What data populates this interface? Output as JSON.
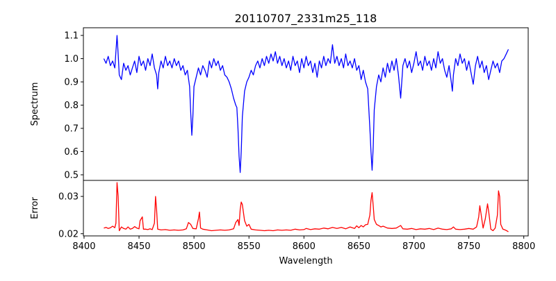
{
  "chart_data": [
    {
      "type": "line",
      "title": "20110707_2331m25_118",
      "xlabel": "",
      "ylabel": "Spectrum",
      "xlim": [
        8399.4,
        8804
      ],
      "ylim": [
        0.476,
        1.133
      ],
      "xticks": [
        8400,
        8450,
        8500,
        8550,
        8600,
        8650,
        8700,
        8750,
        8800
      ],
      "yticks": [
        0.5,
        0.6,
        0.7,
        0.8,
        0.9,
        1.0,
        1.1
      ],
      "ytick_labels": [
        "0.5",
        "0.6",
        "0.7",
        "0.8",
        "0.9",
        "1.0",
        "1.1"
      ],
      "color": "#0000ff",
      "points": [
        [
          8418,
          1.0
        ],
        [
          8420,
          0.98
        ],
        [
          8422,
          1.01
        ],
        [
          8424,
          0.97
        ],
        [
          8426,
          0.99
        ],
        [
          8428,
          0.96
        ],
        [
          8429,
          1.03
        ],
        [
          8430,
          1.1
        ],
        [
          8431,
          1.02
        ],
        [
          8432,
          0.93
        ],
        [
          8434,
          0.91
        ],
        [
          8436,
          0.98
        ],
        [
          8438,
          0.95
        ],
        [
          8440,
          0.97
        ],
        [
          8442,
          0.93
        ],
        [
          8444,
          0.96
        ],
        [
          8446,
          0.99
        ],
        [
          8448,
          0.94
        ],
        [
          8450,
          1.01
        ],
        [
          8452,
          0.97
        ],
        [
          8454,
          0.99
        ],
        [
          8456,
          0.95
        ],
        [
          8458,
          1.0
        ],
        [
          8460,
          0.97
        ],
        [
          8462,
          1.02
        ],
        [
          8464,
          0.96
        ],
        [
          8466,
          0.93
        ],
        [
          8467,
          0.87
        ],
        [
          8468,
          0.94
        ],
        [
          8470,
          0.99
        ],
        [
          8472,
          0.96
        ],
        [
          8474,
          1.01
        ],
        [
          8476,
          0.97
        ],
        [
          8478,
          0.99
        ],
        [
          8480,
          0.96
        ],
        [
          8482,
          1.0
        ],
        [
          8484,
          0.97
        ],
        [
          8486,
          0.99
        ],
        [
          8488,
          0.95
        ],
        [
          8490,
          0.97
        ],
        [
          8492,
          0.93
        ],
        [
          8494,
          0.95
        ],
        [
          8496,
          0.88
        ],
        [
          8497,
          0.77
        ],
        [
          8498,
          0.67
        ],
        [
          8499,
          0.75
        ],
        [
          8500,
          0.88
        ],
        [
          8502,
          0.92
        ],
        [
          8504,
          0.96
        ],
        [
          8506,
          0.93
        ],
        [
          8508,
          0.97
        ],
        [
          8510,
          0.95
        ],
        [
          8512,
          0.92
        ],
        [
          8514,
          0.99
        ],
        [
          8516,
          0.96
        ],
        [
          8518,
          1.0
        ],
        [
          8520,
          0.97
        ],
        [
          8522,
          0.99
        ],
        [
          8524,
          0.95
        ],
        [
          8526,
          0.97
        ],
        [
          8528,
          0.93
        ],
        [
          8530,
          0.92
        ],
        [
          8532,
          0.9
        ],
        [
          8534,
          0.87
        ],
        [
          8536,
          0.83
        ],
        [
          8538,
          0.8
        ],
        [
          8539,
          0.79
        ],
        [
          8540,
          0.7
        ],
        [
          8541,
          0.58
        ],
        [
          8542,
          0.51
        ],
        [
          8543,
          0.6
        ],
        [
          8544,
          0.75
        ],
        [
          8546,
          0.86
        ],
        [
          8548,
          0.9
        ],
        [
          8550,
          0.92
        ],
        [
          8552,
          0.95
        ],
        [
          8554,
          0.93
        ],
        [
          8556,
          0.97
        ],
        [
          8558,
          0.99
        ],
        [
          8560,
          0.96
        ],
        [
          8562,
          1.0
        ],
        [
          8564,
          0.97
        ],
        [
          8566,
          1.01
        ],
        [
          8568,
          0.98
        ],
        [
          8570,
          1.02
        ],
        [
          8572,
          0.99
        ],
        [
          8574,
          1.03
        ],
        [
          8576,
          0.98
        ],
        [
          8578,
          1.01
        ],
        [
          8580,
          0.97
        ],
        [
          8582,
          1.0
        ],
        [
          8584,
          0.96
        ],
        [
          8586,
          0.99
        ],
        [
          8588,
          0.95
        ],
        [
          8590,
          1.01
        ],
        [
          8592,
          0.97
        ],
        [
          8594,
          0.99
        ],
        [
          8596,
          0.94
        ],
        [
          8598,
          1.0
        ],
        [
          8600,
          0.96
        ],
        [
          8602,
          1.01
        ],
        [
          8604,
          0.97
        ],
        [
          8606,
          0.99
        ],
        [
          8608,
          0.94
        ],
        [
          8610,
          0.98
        ],
        [
          8612,
          0.92
        ],
        [
          8614,
          0.99
        ],
        [
          8616,
          0.96
        ],
        [
          8618,
          1.01
        ],
        [
          8620,
          0.97
        ],
        [
          8622,
          1.0
        ],
        [
          8624,
          0.98
        ],
        [
          8626,
          1.06
        ],
        [
          8628,
          0.98
        ],
        [
          8630,
          1.01
        ],
        [
          8632,
          0.97
        ],
        [
          8634,
          1.0
        ],
        [
          8636,
          0.96
        ],
        [
          8638,
          1.02
        ],
        [
          8640,
          0.97
        ],
        [
          8642,
          0.99
        ],
        [
          8644,
          0.96
        ],
        [
          8646,
          1.0
        ],
        [
          8648,
          0.95
        ],
        [
          8650,
          0.97
        ],
        [
          8652,
          0.91
        ],
        [
          8654,
          0.95
        ],
        [
          8656,
          0.9
        ],
        [
          8658,
          0.87
        ],
        [
          8660,
          0.7
        ],
        [
          8661,
          0.6
        ],
        [
          8662,
          0.52
        ],
        [
          8663,
          0.62
        ],
        [
          8664,
          0.78
        ],
        [
          8666,
          0.88
        ],
        [
          8668,
          0.93
        ],
        [
          8670,
          0.9
        ],
        [
          8672,
          0.96
        ],
        [
          8674,
          0.92
        ],
        [
          8676,
          0.98
        ],
        [
          8678,
          0.94
        ],
        [
          8680,
          0.99
        ],
        [
          8682,
          0.95
        ],
        [
          8684,
          1.0
        ],
        [
          8686,
          0.93
        ],
        [
          8688,
          0.83
        ],
        [
          8689,
          0.9
        ],
        [
          8690,
          0.97
        ],
        [
          8692,
          1.0
        ],
        [
          8694,
          0.96
        ],
        [
          8696,
          0.99
        ],
        [
          8698,
          0.94
        ],
        [
          8700,
          0.98
        ],
        [
          8702,
          1.03
        ],
        [
          8704,
          0.97
        ],
        [
          8706,
          0.99
        ],
        [
          8708,
          0.95
        ],
        [
          8710,
          1.01
        ],
        [
          8712,
          0.97
        ],
        [
          8714,
          0.99
        ],
        [
          8716,
          0.95
        ],
        [
          8718,
          1.0
        ],
        [
          8720,
          0.96
        ],
        [
          8722,
          1.03
        ],
        [
          8724,
          0.98
        ],
        [
          8726,
          1.0
        ],
        [
          8728,
          0.95
        ],
        [
          8730,
          0.92
        ],
        [
          8732,
          0.97
        ],
        [
          8734,
          0.9
        ],
        [
          8735,
          0.86
        ],
        [
          8736,
          0.93
        ],
        [
          8738,
          1.0
        ],
        [
          8740,
          0.97
        ],
        [
          8742,
          1.02
        ],
        [
          8744,
          0.98
        ],
        [
          8746,
          1.0
        ],
        [
          8748,
          0.95
        ],
        [
          8750,
          0.99
        ],
        [
          8752,
          0.94
        ],
        [
          8754,
          0.89
        ],
        [
          8756,
          0.97
        ],
        [
          8758,
          1.01
        ],
        [
          8760,
          0.96
        ],
        [
          8762,
          0.99
        ],
        [
          8764,
          0.94
        ],
        [
          8766,
          0.97
        ],
        [
          8768,
          0.91
        ],
        [
          8770,
          0.95
        ],
        [
          8772,
          0.99
        ],
        [
          8774,
          0.96
        ],
        [
          8776,
          0.98
        ],
        [
          8778,
          0.94
        ],
        [
          8780,
          0.99
        ],
        [
          8782,
          1.0
        ],
        [
          8784,
          1.02
        ],
        [
          8786,
          1.04
        ]
      ]
    },
    {
      "type": "line",
      "title": "",
      "xlabel": "Wavelength",
      "ylabel": "Error",
      "xlim": [
        8399.4,
        8804
      ],
      "ylim": [
        0.0194,
        0.0343
      ],
      "xticks": [
        8400,
        8450,
        8500,
        8550,
        8600,
        8650,
        8700,
        8750,
        8800
      ],
      "xtick_labels": [
        "8400",
        "8450",
        "8500",
        "8550",
        "8600",
        "8650",
        "8700",
        "8750",
        "8800"
      ],
      "yticks": [
        0.02,
        0.03
      ],
      "ytick_labels": [
        "0.02",
        "0.03"
      ],
      "color": "#ff0000",
      "points": [
        [
          8418,
          0.0215
        ],
        [
          8420,
          0.0217
        ],
        [
          8422,
          0.0214
        ],
        [
          8424,
          0.0216
        ],
        [
          8426,
          0.022
        ],
        [
          8428,
          0.0216
        ],
        [
          8429,
          0.0228
        ],
        [
          8430,
          0.0337
        ],
        [
          8431,
          0.03
        ],
        [
          8432,
          0.0208
        ],
        [
          8434,
          0.0218
        ],
        [
          8436,
          0.0214
        ],
        [
          8438,
          0.0212
        ],
        [
          8440,
          0.0218
        ],
        [
          8442,
          0.0212
        ],
        [
          8444,
          0.0214
        ],
        [
          8446,
          0.0219
        ],
        [
          8448,
          0.0215
        ],
        [
          8450,
          0.0213
        ],
        [
          8451,
          0.0235
        ],
        [
          8453,
          0.0245
        ],
        [
          8454,
          0.0212
        ],
        [
          8456,
          0.0212
        ],
        [
          8458,
          0.0211
        ],
        [
          8460,
          0.0213
        ],
        [
          8462,
          0.0211
        ],
        [
          8464,
          0.0228
        ],
        [
          8465,
          0.03
        ],
        [
          8466,
          0.0265
        ],
        [
          8467,
          0.0212
        ],
        [
          8470,
          0.021
        ],
        [
          8474,
          0.0211
        ],
        [
          8478,
          0.0209
        ],
        [
          8482,
          0.021
        ],
        [
          8486,
          0.0209
        ],
        [
          8490,
          0.021
        ],
        [
          8493,
          0.0213
        ],
        [
          8495,
          0.023
        ],
        [
          8497,
          0.0225
        ],
        [
          8499,
          0.0214
        ],
        [
          8502,
          0.0213
        ],
        [
          8504,
          0.024
        ],
        [
          8505,
          0.0258
        ],
        [
          8506,
          0.0215
        ],
        [
          8508,
          0.0212
        ],
        [
          8512,
          0.021
        ],
        [
          8516,
          0.0208
        ],
        [
          8520,
          0.0209
        ],
        [
          8524,
          0.021
        ],
        [
          8528,
          0.0209
        ],
        [
          8532,
          0.021
        ],
        [
          8536,
          0.0213
        ],
        [
          8538,
          0.023
        ],
        [
          8540,
          0.0238
        ],
        [
          8541,
          0.0222
        ],
        [
          8542,
          0.0265
        ],
        [
          8543,
          0.0285
        ],
        [
          8544,
          0.0278
        ],
        [
          8546,
          0.0235
        ],
        [
          8548,
          0.022
        ],
        [
          8550,
          0.0225
        ],
        [
          8552,
          0.0212
        ],
        [
          8556,
          0.021
        ],
        [
          8560,
          0.0209
        ],
        [
          8564,
          0.0208
        ],
        [
          8568,
          0.0209
        ],
        [
          8572,
          0.0208
        ],
        [
          8576,
          0.021
        ],
        [
          8580,
          0.0209
        ],
        [
          8584,
          0.021
        ],
        [
          8588,
          0.0209
        ],
        [
          8592,
          0.0212
        ],
        [
          8596,
          0.021
        ],
        [
          8600,
          0.0211
        ],
        [
          8602,
          0.0214
        ],
        [
          8606,
          0.0211
        ],
        [
          8610,
          0.0213
        ],
        [
          8614,
          0.0212
        ],
        [
          8618,
          0.0215
        ],
        [
          8622,
          0.0213
        ],
        [
          8626,
          0.0217
        ],
        [
          8630,
          0.0214
        ],
        [
          8634,
          0.0217
        ],
        [
          8638,
          0.0213
        ],
        [
          8642,
          0.0218
        ],
        [
          8646,
          0.0214
        ],
        [
          8648,
          0.0221
        ],
        [
          8650,
          0.0216
        ],
        [
          8652,
          0.0222
        ],
        [
          8654,
          0.0218
        ],
        [
          8656,
          0.0224
        ],
        [
          8658,
          0.0225
        ],
        [
          8660,
          0.025
        ],
        [
          8661,
          0.029
        ],
        [
          8662,
          0.031
        ],
        [
          8663,
          0.0275
        ],
        [
          8664,
          0.0238
        ],
        [
          8666,
          0.0225
        ],
        [
          8668,
          0.0222
        ],
        [
          8670,
          0.0218
        ],
        [
          8672,
          0.022
        ],
        [
          8676,
          0.0215
        ],
        [
          8680,
          0.0214
        ],
        [
          8684,
          0.0215
        ],
        [
          8688,
          0.0222
        ],
        [
          8690,
          0.0213
        ],
        [
          8694,
          0.0212
        ],
        [
          8698,
          0.0214
        ],
        [
          8702,
          0.0211
        ],
        [
          8706,
          0.0213
        ],
        [
          8710,
          0.0212
        ],
        [
          8714,
          0.0214
        ],
        [
          8718,
          0.0211
        ],
        [
          8722,
          0.0215
        ],
        [
          8726,
          0.0212
        ],
        [
          8730,
          0.0211
        ],
        [
          8734,
          0.0213
        ],
        [
          8736,
          0.0218
        ],
        [
          8738,
          0.0212
        ],
        [
          8742,
          0.0211
        ],
        [
          8746,
          0.0212
        ],
        [
          8750,
          0.0214
        ],
        [
          8754,
          0.0212
        ],
        [
          8757,
          0.0218
        ],
        [
          8759,
          0.0245
        ],
        [
          8760,
          0.0275
        ],
        [
          8761,
          0.0255
        ],
        [
          8763,
          0.0215
        ],
        [
          8765,
          0.024
        ],
        [
          8767,
          0.028
        ],
        [
          8768,
          0.026
        ],
        [
          8770,
          0.0212
        ],
        [
          8772,
          0.0208
        ],
        [
          8774,
          0.0215
        ],
        [
          8776,
          0.025
        ],
        [
          8777,
          0.0315
        ],
        [
          8778,
          0.03
        ],
        [
          8779,
          0.0225
        ],
        [
          8781,
          0.0212
        ],
        [
          8783,
          0.021
        ],
        [
          8785,
          0.0207
        ],
        [
          8786,
          0.0205
        ]
      ]
    }
  ]
}
